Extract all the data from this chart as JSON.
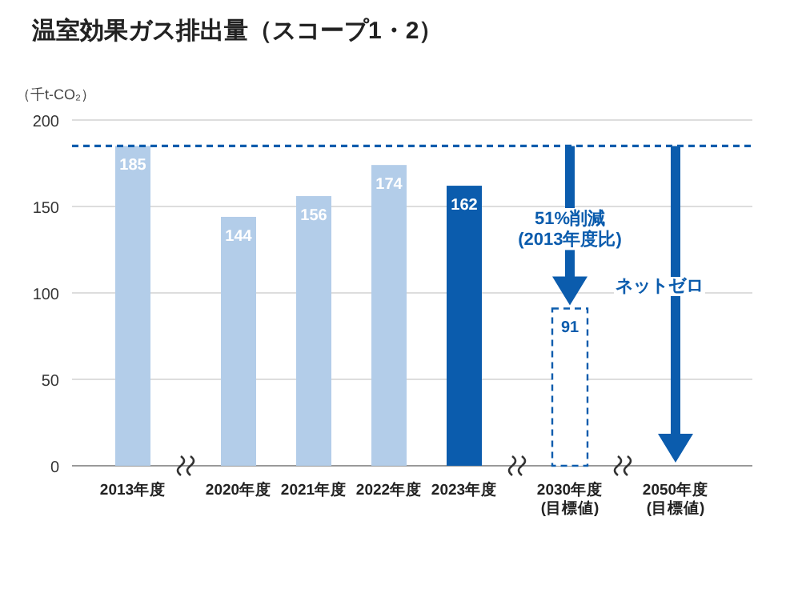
{
  "chart_data": {
    "type": "bar",
    "title": "温室効果ガス排出量（スコープ1・2）",
    "ylabel": "（千t-CO₂）",
    "categories": [
      "2013年度",
      "2020年度",
      "2021年度",
      "2022年度",
      "2023年度",
      "2030年度\n(目標値)",
      "2050年度\n(目標値)"
    ],
    "series": [
      {
        "colors": [
          "#b3cde9",
          "#b3cde9",
          "#b3cde9",
          "#b3cde9",
          "#0b5cad",
          null,
          null
        ],
        "values": [
          185,
          144,
          156,
          174,
          162,
          null,
          null
        ]
      },
      {
        "color": "#0b5cad",
        "line_style": "dashed",
        "values": [
          null,
          null,
          null,
          null,
          null,
          91,
          null
        ]
      }
    ],
    "ylim": [
      0,
      200
    ],
    "yticks": [
      0,
      50,
      100,
      150,
      200
    ],
    "grid": "y",
    "data_labels": true,
    "ref_lines": [
      {
        "axis": "y",
        "value": 185,
        "color": "#0b5cad",
        "line_style": "dashed"
      }
    ],
    "annotations": [
      "51%削減\n(2013年度比)",
      "ネットゼロ"
    ]
  }
}
